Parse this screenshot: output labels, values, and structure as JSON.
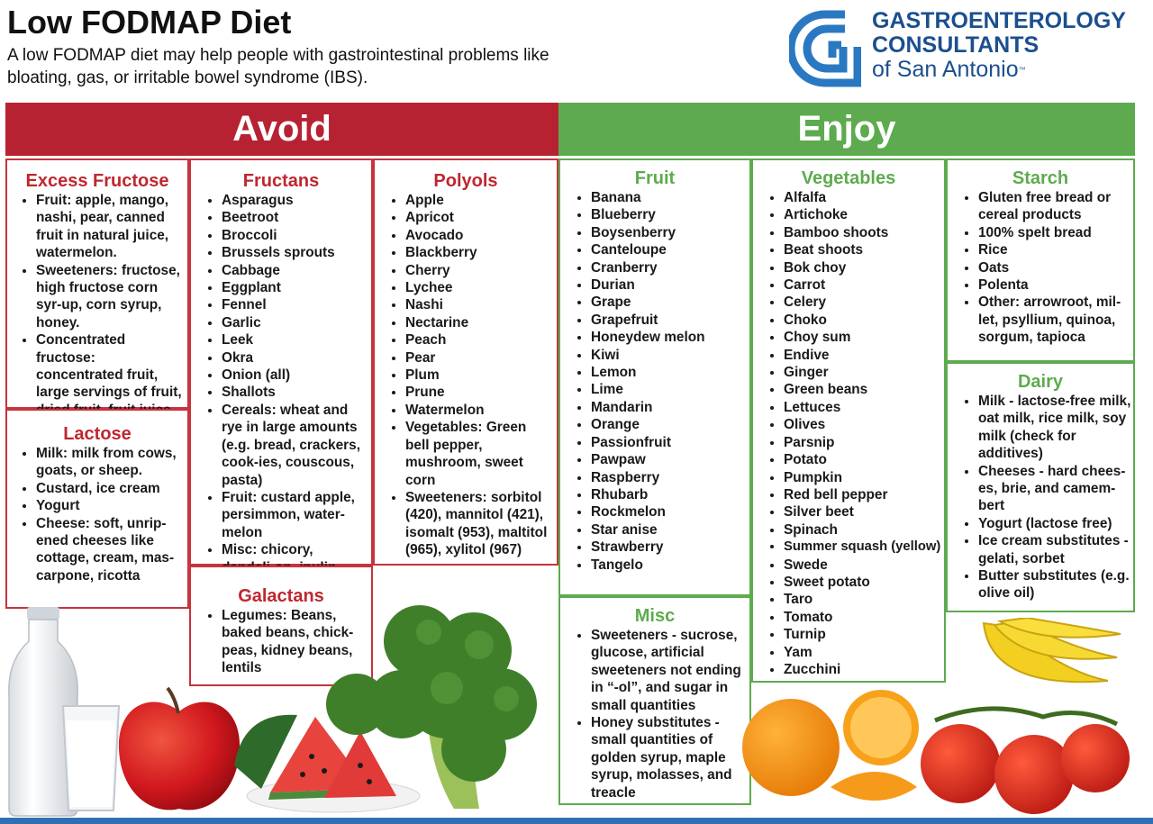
{
  "header": {
    "title": "Low FODMAP Diet",
    "subtitle": "A low FODMAP diet may help people with gastrointestinal problems like bloating, gas, or irritable bowel syndrome (IBS).",
    "logo_line1": "GASTROENTEROLOGY",
    "logo_line2": "CONSULTANTS",
    "logo_line3": "of San Antonio",
    "logo_tm": "™"
  },
  "colors": {
    "avoid": "#b72233",
    "enjoy": "#5dab4e",
    "logo_blue": "#1b4f8f",
    "footer": "#2f70b5"
  },
  "sections": {
    "avoid_label": "Avoid",
    "enjoy_label": "Enjoy"
  },
  "avoid": {
    "excess_fructose": {
      "title": "Excess Fructose",
      "items": [
        "Fruit: apple, mango, nashi, pear, canned fruit in natural juice, watermelon.",
        "Sweeteners: fructose, high fructose corn syr-up, corn syrup, honey.",
        "Concentrated fructose: concentrated fruit, large servings of fruit, dried fruit, fruit juice."
      ]
    },
    "lactose": {
      "title": "Lactose",
      "items": [
        "Milk: milk from cows, goats, or sheep.",
        "Custard, ice cream",
        "Yogurt",
        "Cheese: soft, unrip-ened cheeses like cottage, cream, mas-carpone, ricotta"
      ]
    },
    "fructans": {
      "title": "Fructans",
      "items": [
        "Asparagus",
        "Beetroot",
        "Broccoli",
        "Brussels sprouts",
        "Cabbage",
        "Eggplant",
        "Fennel",
        "Garlic",
        "Leek",
        "Okra",
        "Onion (all)",
        "Shallots",
        "Cereals: wheat and rye in large amounts (e.g. bread, crackers, cook-ies, couscous, pasta)",
        "Fruit: custard apple, persimmon, water-melon",
        "Misc: chicory, dandeli-on, inulin"
      ]
    },
    "galactans": {
      "title": "Galactans",
      "items": [
        "Legumes: Beans, baked beans, chick-peas, kidney beans, lentils"
      ]
    },
    "polyols": {
      "title": "Polyols",
      "items": [
        "Apple",
        "Apricot",
        "Avocado",
        "Blackberry",
        "Cherry",
        "Lychee",
        "Nashi",
        "Nectarine",
        "Peach",
        "Pear",
        "Plum",
        "Prune",
        "Watermelon",
        "Vegetables: Green bell pepper, mushroom, sweet corn",
        "Sweeteners: sorbitol (420), mannitol (421), isomalt (953), maltitol (965), xylitol (967)"
      ]
    }
  },
  "enjoy": {
    "fruit": {
      "title": "Fruit",
      "items": [
        "Banana",
        "Blueberry",
        "Boysenberry",
        "Canteloupe",
        "Cranberry",
        "Durian",
        "Grape",
        "Grapefruit",
        "Honeydew melon",
        "Kiwi",
        "Lemon",
        "Lime",
        "Mandarin",
        "Orange",
        "Passionfruit",
        "Pawpaw",
        "Raspberry",
        "Rhubarb",
        "Rockmelon",
        "Star anise",
        "Strawberry",
        "Tangelo"
      ]
    },
    "misc": {
      "title": "Misc",
      "items": [
        "Sweeteners - sucrose, glucose, artificial sweeteners not ending in “-ol”, and sugar in small quantities",
        "Honey substitutes - small quantities of golden syrup, maple syrup, molasses, and treacle"
      ]
    },
    "vegetables": {
      "title": "Vegetables",
      "items": [
        "Alfalfa",
        "Artichoke",
        "Bamboo shoots",
        "Beat shoots",
        "Bok choy",
        "Carrot",
        "Celery",
        "Choko",
        "Choy sum",
        "Endive",
        "Ginger",
        "Green beans",
        "Lettuces",
        "Olives",
        "Parsnip",
        "Potato",
        "Pumpkin",
        "Red bell pepper",
        "Silver beet",
        "Spinach",
        "Summer squash (yellow)",
        "Swede",
        "Sweet potato",
        "Taro",
        "Tomato",
        "Turnip",
        "Yam",
        "Zucchini"
      ]
    },
    "starch": {
      "title": "Starch",
      "items": [
        "Gluten free bread or cereal products",
        "100% spelt bread",
        "Rice",
        "Oats",
        "Polenta",
        "Other: arrowroot, mil-let, psyllium, quinoa, sorgum, tapioca"
      ]
    },
    "dairy": {
      "title": "Dairy",
      "items": [
        "Milk - lactose-free milk, oat milk, rice milk, soy milk (check for additives)",
        "Cheeses - hard chees-es, brie, and camem-bert",
        "Yogurt (lactose free)",
        "Ice cream substitutes - gelati, sorbet",
        "Butter substitutes (e.g. olive oil)"
      ]
    }
  }
}
